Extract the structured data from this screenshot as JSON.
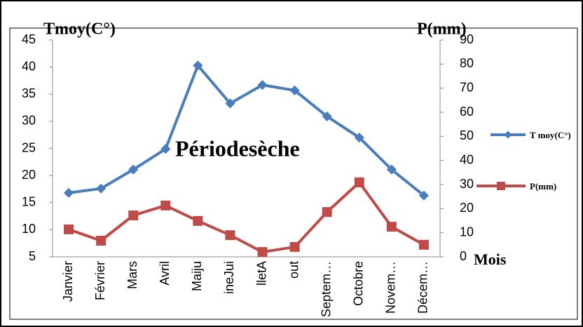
{
  "chart_data": {
    "type": "line",
    "y_label": "Tmoy(C°)",
    "y2_label": "P(mm)",
    "x_label": "Mois",
    "annotation": "Périodesèche",
    "categories": [
      "Janvier",
      "Février",
      "Mars",
      "Avril",
      "Maiju",
      "ineJui",
      "lletA",
      "out",
      "Septem…",
      "Octobre",
      "Novem…",
      "Décem…"
    ],
    "series": [
      {
        "name": "T moy(C°)",
        "color": "#4a7ebb",
        "marker": "diamond",
        "values": [
          16.8,
          17.6,
          21.1,
          24.9,
          40.3,
          33.3,
          36.7,
          35.7,
          30.9,
          27.0,
          21.1,
          16.3
        ]
      },
      {
        "name": "P(mm)",
        "color": "#be4b48",
        "marker": "square",
        "axis": "y2",
        "values": [
          11.4,
          6.7,
          17.2,
          21.3,
          14.9,
          9.0,
          2.0,
          4.1,
          18.6,
          30.9,
          12.5,
          5.0
        ]
      }
    ],
    "ylim": [
      5,
      45
    ],
    "yticks": [
      5,
      10,
      15,
      20,
      25,
      30,
      35,
      40,
      45
    ],
    "y2lim": [
      0,
      90
    ],
    "y2ticks": [
      0,
      10,
      20,
      30,
      40,
      50,
      60,
      70,
      80,
      90
    ],
    "legend": "right"
  }
}
